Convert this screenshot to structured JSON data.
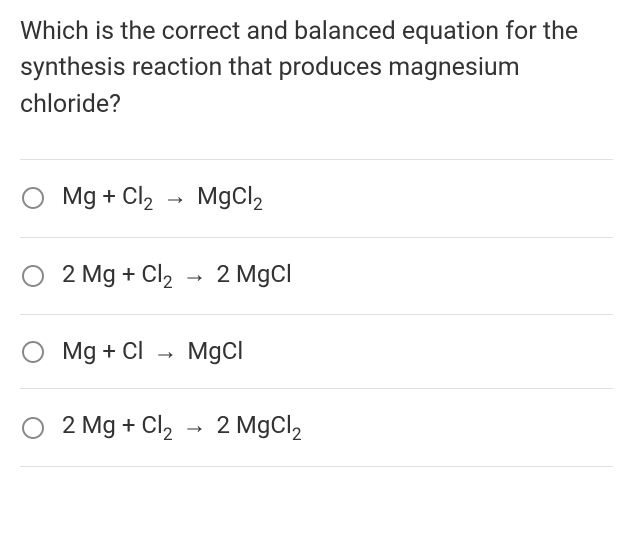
{
  "question": {
    "text": "Which is the correct and balanced equation for the synthesis reaction that produces magnesium chloride?"
  },
  "options": [
    {
      "id": "opt-a",
      "tokens": [
        {
          "t": "text",
          "v": "Mg + Cl"
        },
        {
          "t": "sub",
          "v": "2"
        },
        {
          "t": "text",
          "v": " "
        },
        {
          "t": "arrow",
          "v": "→"
        },
        {
          "t": "text",
          "v": " MgCl"
        },
        {
          "t": "sub",
          "v": "2"
        }
      ]
    },
    {
      "id": "opt-b",
      "tokens": [
        {
          "t": "text",
          "v": "2 Mg + Cl"
        },
        {
          "t": "sub",
          "v": "2"
        },
        {
          "t": "text",
          "v": " "
        },
        {
          "t": "arrow",
          "v": "→"
        },
        {
          "t": "text",
          "v": "  2 MgCl"
        }
      ]
    },
    {
      "id": "opt-c",
      "tokens": [
        {
          "t": "text",
          "v": "Mg + Cl "
        },
        {
          "t": "arrow",
          "v": "→"
        },
        {
          "t": "text",
          "v": " MgCl"
        }
      ]
    },
    {
      "id": "opt-d",
      "tokens": [
        {
          "t": "text",
          "v": "2 Mg + Cl"
        },
        {
          "t": "sub",
          "v": "2"
        },
        {
          "t": "text",
          "v": "  "
        },
        {
          "t": "arrow",
          "v": "→"
        },
        {
          "t": "text",
          "v": "  2 MgCl"
        },
        {
          "t": "sub",
          "v": "2"
        }
      ]
    }
  ],
  "colors": {
    "text": "#333333",
    "divider": "#e0e0e0",
    "radio_border": "#888888",
    "background": "#ffffff"
  },
  "typography": {
    "question_fontsize": 25,
    "option_fontsize": 24,
    "line_height": 1.45
  }
}
